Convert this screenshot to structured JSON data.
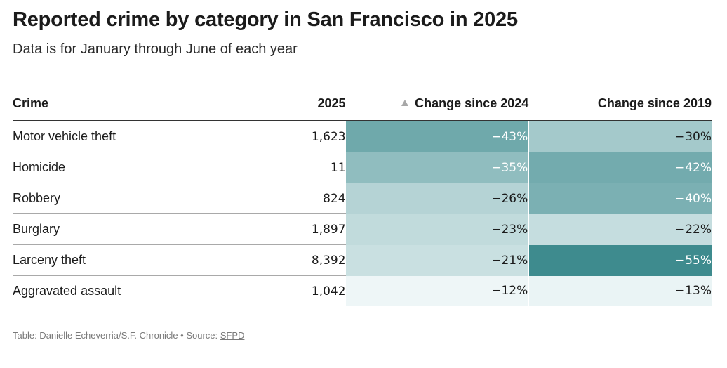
{
  "chart_data": {
    "type": "table",
    "title": "Reported crime by category in San Francisco in 2025",
    "subtitle": "Data is for January through June of each year",
    "columns": [
      "Crime",
      "2025",
      "Change since 2024",
      "Change since 2019"
    ],
    "sorted_column": "Change since 2024",
    "rows": [
      {
        "crime": "Motor vehicle theft",
        "count_2025": "1,623",
        "change_2024": "−43%",
        "change_2019": "−30%",
        "change_2024_value": -43,
        "change_2019_value": -30
      },
      {
        "crime": "Homicide",
        "count_2025": "11",
        "change_2024": "−35%",
        "change_2019": "−42%",
        "change_2024_value": -35,
        "change_2019_value": -42
      },
      {
        "crime": "Robbery",
        "count_2025": "824",
        "change_2024": "−26%",
        "change_2019": "−40%",
        "change_2024_value": -26,
        "change_2019_value": -40
      },
      {
        "crime": "Burglary",
        "count_2025": "1,897",
        "change_2024": "−23%",
        "change_2019": "−22%",
        "change_2024_value": -23,
        "change_2019_value": -22
      },
      {
        "crime": "Larceny theft",
        "count_2025": "8,392",
        "change_2024": "−21%",
        "change_2019": "−55%",
        "change_2024_value": -21,
        "change_2019_value": -55
      },
      {
        "crime": "Aggravated assault",
        "count_2025": "1,042",
        "change_2024": "−12%",
        "change_2019": "−13%",
        "change_2024_value": -12,
        "change_2019_value": -13
      }
    ],
    "color_scale": {
      "light": "#eef6f7",
      "dark": "#3e8b8e",
      "dark_text": "#1b1b1b",
      "light_text": "#ffffff"
    }
  },
  "footer": {
    "credit": "Table: Danielle Echeverria/S.F. Chronicle • Source: ",
    "source_label": "SFPD"
  }
}
